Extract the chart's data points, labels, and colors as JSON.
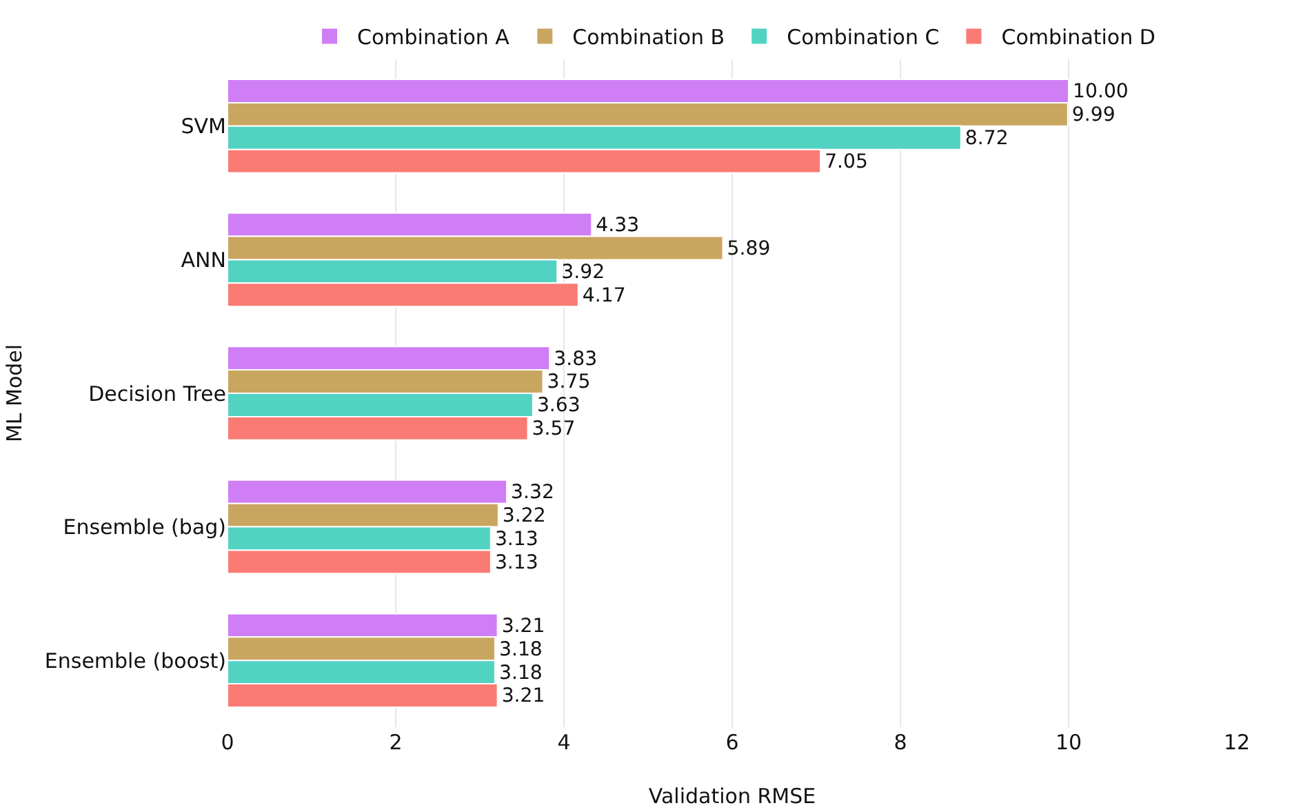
{
  "chart_data": {
    "type": "bar",
    "orientation": "horizontal",
    "xlabel": "Validation RMSE",
    "ylabel": "ML Model",
    "categories": [
      "SVM",
      "ANN",
      "Decision Tree",
      "Ensemble (bag)",
      "Ensemble (boost)"
    ],
    "series": [
      {
        "name": "Combination A",
        "color": "#cf7ef5",
        "values": [
          10.0,
          4.33,
          3.83,
          3.32,
          3.21
        ],
        "value_labels": [
          "10.00",
          "4.33",
          "3.83",
          "3.32",
          "3.21"
        ]
      },
      {
        "name": "Combination B",
        "color": "#c9a660",
        "values": [
          9.99,
          5.89,
          3.75,
          3.22,
          3.18
        ],
        "value_labels": [
          "9.99",
          "5.89",
          "3.75",
          "3.22",
          "3.18"
        ]
      },
      {
        "name": "Combination C",
        "color": "#52d3c2",
        "values": [
          8.72,
          3.92,
          3.63,
          3.13,
          3.18
        ],
        "value_labels": [
          "8.72",
          "3.92",
          "3.63",
          "3.13",
          "3.18"
        ]
      },
      {
        "name": "Combination D",
        "color": "#f97b73",
        "values": [
          7.05,
          4.17,
          3.57,
          3.13,
          3.21
        ],
        "value_labels": [
          "7.05",
          "4.17",
          "3.57",
          "3.13",
          "3.21"
        ]
      }
    ],
    "xlim": [
      0,
      12
    ],
    "xticks": [
      0,
      2,
      4,
      6,
      8,
      10,
      12
    ],
    "grid": "x",
    "legend": "top"
  }
}
